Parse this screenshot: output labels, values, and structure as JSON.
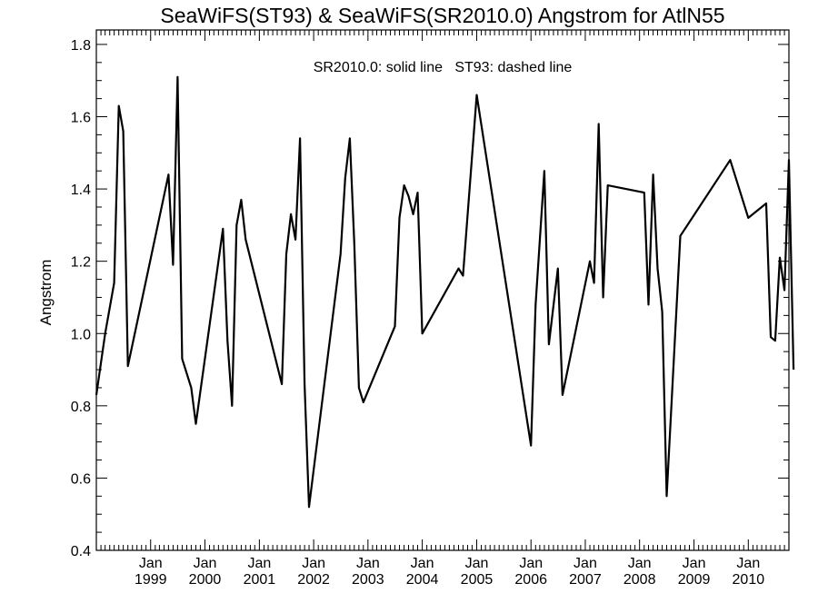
{
  "chart_data": {
    "type": "line",
    "title": "SeaWiFS(ST93) & SeaWiFS(SR2010.0)  Angstrom for AtlN55",
    "annotation": "SR2010.0: solid line   ST93: dashed line",
    "ylabel": "Angstrom",
    "xlabel": "",
    "ylim": [
      0.4,
      1.84
    ],
    "xlim": [
      "1998-01-01",
      "2010-10-01"
    ],
    "y_ticks": [
      0.4,
      0.6,
      0.8,
      1.0,
      1.2,
      1.4,
      1.6,
      1.8
    ],
    "y_tick_labels": [
      "0.4",
      "0.6",
      "0.8",
      "1.0",
      "1.2",
      "1.4",
      "1.6",
      "1.8"
    ],
    "x_ticks": [
      {
        "month": "Jan",
        "year": "1999",
        "date": "1999-01-01"
      },
      {
        "month": "Jan",
        "year": "2000",
        "date": "2000-01-01"
      },
      {
        "month": "Jan",
        "year": "2001",
        "date": "2001-01-01"
      },
      {
        "month": "Jan",
        "year": "2002",
        "date": "2002-01-01"
      },
      {
        "month": "Jan",
        "year": "2003",
        "date": "2003-01-01"
      },
      {
        "month": "Jan",
        "year": "2004",
        "date": "2004-01-01"
      },
      {
        "month": "Jan",
        "year": "2005",
        "date": "2005-01-01"
      },
      {
        "month": "Jan",
        "year": "2006",
        "date": "2006-01-01"
      },
      {
        "month": "Jan",
        "year": "2007",
        "date": "2007-01-01"
      },
      {
        "month": "Jan",
        "year": "2008",
        "date": "2008-01-01"
      },
      {
        "month": "Jan",
        "year": "2009",
        "date": "2009-01-01"
      },
      {
        "month": "Jan",
        "year": "2010",
        "date": "2010-01-01"
      }
    ],
    "grid": false,
    "series": [
      {
        "name": "SR2010.0",
        "style": "solid",
        "color": "#000000",
        "points": [
          [
            "1998-01-01",
            0.83
          ],
          [
            "1998-03-01",
            1.0
          ],
          [
            "1998-05-01",
            1.14
          ],
          [
            "1998-06-01",
            1.63
          ],
          [
            "1998-07-01",
            1.56
          ],
          [
            "1998-08-01",
            0.91
          ],
          [
            "1999-05-01",
            1.44
          ],
          [
            "1999-06-01",
            1.19
          ],
          [
            "1999-07-01",
            1.71
          ],
          [
            "1999-08-01",
            0.93
          ],
          [
            "1999-10-01",
            0.85
          ],
          [
            "1999-11-01",
            0.75
          ],
          [
            "2000-05-01",
            1.29
          ],
          [
            "2000-06-01",
            0.98
          ],
          [
            "2000-07-01",
            0.8
          ],
          [
            "2000-08-01",
            1.3
          ],
          [
            "2000-09-01",
            1.37
          ],
          [
            "2000-10-01",
            1.26
          ],
          [
            "2001-06-01",
            0.86
          ],
          [
            "2001-07-01",
            1.22
          ],
          [
            "2001-08-01",
            1.33
          ],
          [
            "2001-09-01",
            1.26
          ],
          [
            "2001-10-01",
            1.54
          ],
          [
            "2001-11-01",
            0.86
          ],
          [
            "2001-12-01",
            0.52
          ],
          [
            "2002-07-01",
            1.22
          ],
          [
            "2002-08-01",
            1.43
          ],
          [
            "2002-09-01",
            1.54
          ],
          [
            "2002-10-01",
            1.25
          ],
          [
            "2002-11-01",
            0.85
          ],
          [
            "2002-12-01",
            0.81
          ],
          [
            "2003-07-01",
            1.02
          ],
          [
            "2003-08-01",
            1.32
          ],
          [
            "2003-09-01",
            1.41
          ],
          [
            "2003-10-01",
            1.38
          ],
          [
            "2003-11-01",
            1.33
          ],
          [
            "2003-12-01",
            1.39
          ],
          [
            "2004-01-01",
            1.0
          ],
          [
            "2004-09-01",
            1.18
          ],
          [
            "2004-10-01",
            1.16
          ],
          [
            "2005-01-01",
            1.66
          ],
          [
            "2006-01-01",
            0.69
          ],
          [
            "2006-02-01",
            1.08
          ],
          [
            "2006-04-01",
            1.45
          ],
          [
            "2006-05-01",
            0.97
          ],
          [
            "2006-07-01",
            1.18
          ],
          [
            "2006-08-01",
            0.83
          ],
          [
            "2007-02-01",
            1.2
          ],
          [
            "2007-03-01",
            1.14
          ],
          [
            "2007-04-01",
            1.58
          ],
          [
            "2007-05-01",
            1.1
          ],
          [
            "2007-06-01",
            1.41
          ],
          [
            "2008-02-01",
            1.39
          ],
          [
            "2008-03-01",
            1.08
          ],
          [
            "2008-04-01",
            1.44
          ],
          [
            "2008-05-01",
            1.18
          ],
          [
            "2008-06-01",
            1.06
          ],
          [
            "2008-07-01",
            0.55
          ],
          [
            "2008-10-01",
            1.27
          ],
          [
            "2009-09-01",
            1.48
          ],
          [
            "2010-01-01",
            1.32
          ],
          [
            "2010-05-01",
            1.36
          ],
          [
            "2010-06-01",
            0.99
          ],
          [
            "2010-07-01",
            0.98
          ],
          [
            "2010-08-01",
            1.21
          ],
          [
            "2010-09-01",
            1.12
          ],
          [
            "2010-10-01",
            1.48
          ],
          [
            "2010-11-01",
            0.9
          ]
        ]
      }
    ]
  }
}
